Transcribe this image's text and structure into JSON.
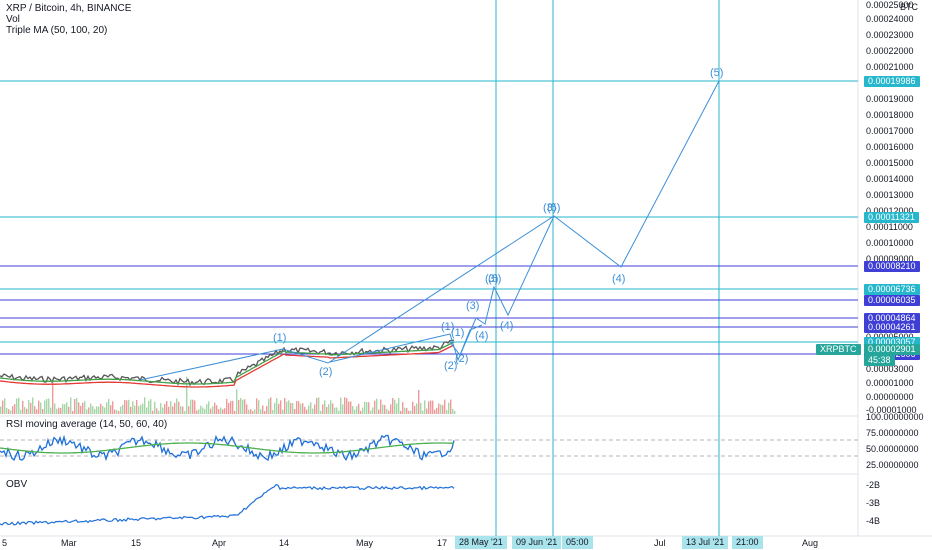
{
  "header": {
    "symbol_line": "XRP / Bitcoin, 4h, BINANCE",
    "vol_label": "Vol",
    "ma_label": "Triple MA (50, 100, 20)",
    "rsi_label": "RSI moving average (14, 50, 60, 40)",
    "obv_label": "OBV",
    "currency": "BTC"
  },
  "price_scale": [
    "0.00025000",
    "0.00024000",
    "0.00023000",
    "0.00022000",
    "0.00021000",
    "0.00019000",
    "0.00018000",
    "0.00017000",
    "0.00016000",
    "0.00015000",
    "0.00014000",
    "0.00013000",
    "0.00012000",
    "0.00011000",
    "0.00010000",
    "0.00009000",
    "0.00007000",
    "0.00005000",
    "0.00004000",
    "0.00003000",
    "0.00001000",
    "0.00000000",
    "-0.00001000"
  ],
  "levels": [
    {
      "label": "0.00019986",
      "kind": "cyan"
    },
    {
      "label": "0.00011321",
      "kind": "cyan"
    },
    {
      "label": "0.00008210",
      "kind": "blue"
    },
    {
      "label": "0.00006736",
      "kind": "cyan"
    },
    {
      "label": "0.00006035",
      "kind": "blue"
    },
    {
      "label": "0.00004864",
      "kind": "blue"
    },
    {
      "label": "0.00004261",
      "kind": "blue"
    },
    {
      "label": "0.00003057",
      "kind": "cyan"
    },
    {
      "label": "0.00002606",
      "kind": "blue"
    }
  ],
  "last_price": {
    "symbol": "XRPBTC",
    "value": "0.00002901",
    "countdown": "45:38"
  },
  "rsi_scale": [
    "100.00000000",
    "75.00000000",
    "50.00000000",
    "25.00000000"
  ],
  "obv_scale": [
    "-2B",
    "-3B",
    "-4B"
  ],
  "x_axis": [
    "5",
    "Mar",
    "15",
    "Apr",
    "14",
    "May",
    "17",
    "Jul",
    "Aug"
  ],
  "x_highlights": [
    "28 May '21",
    "09 Jun '21",
    "05:00",
    "13 Jul '21",
    "21:00"
  ],
  "wave_labels": [
    "(1)",
    "(2)",
    "(1)",
    "(2)",
    "(1)",
    "(2)",
    "(3)",
    "(4)",
    "(3)",
    "(4)",
    "(5)",
    "(3)",
    "(4)",
    "(5)"
  ],
  "colors": {
    "cyan": "#26b7cc",
    "blue": "#3f3fd6",
    "wave": "#3d8fd8",
    "candle_line": "#555555",
    "ma_red": "#e53935",
    "ma_green": "#43a047",
    "rsi_line": "#1e6fd9",
    "rsi_ma": "#4caf50"
  }
}
